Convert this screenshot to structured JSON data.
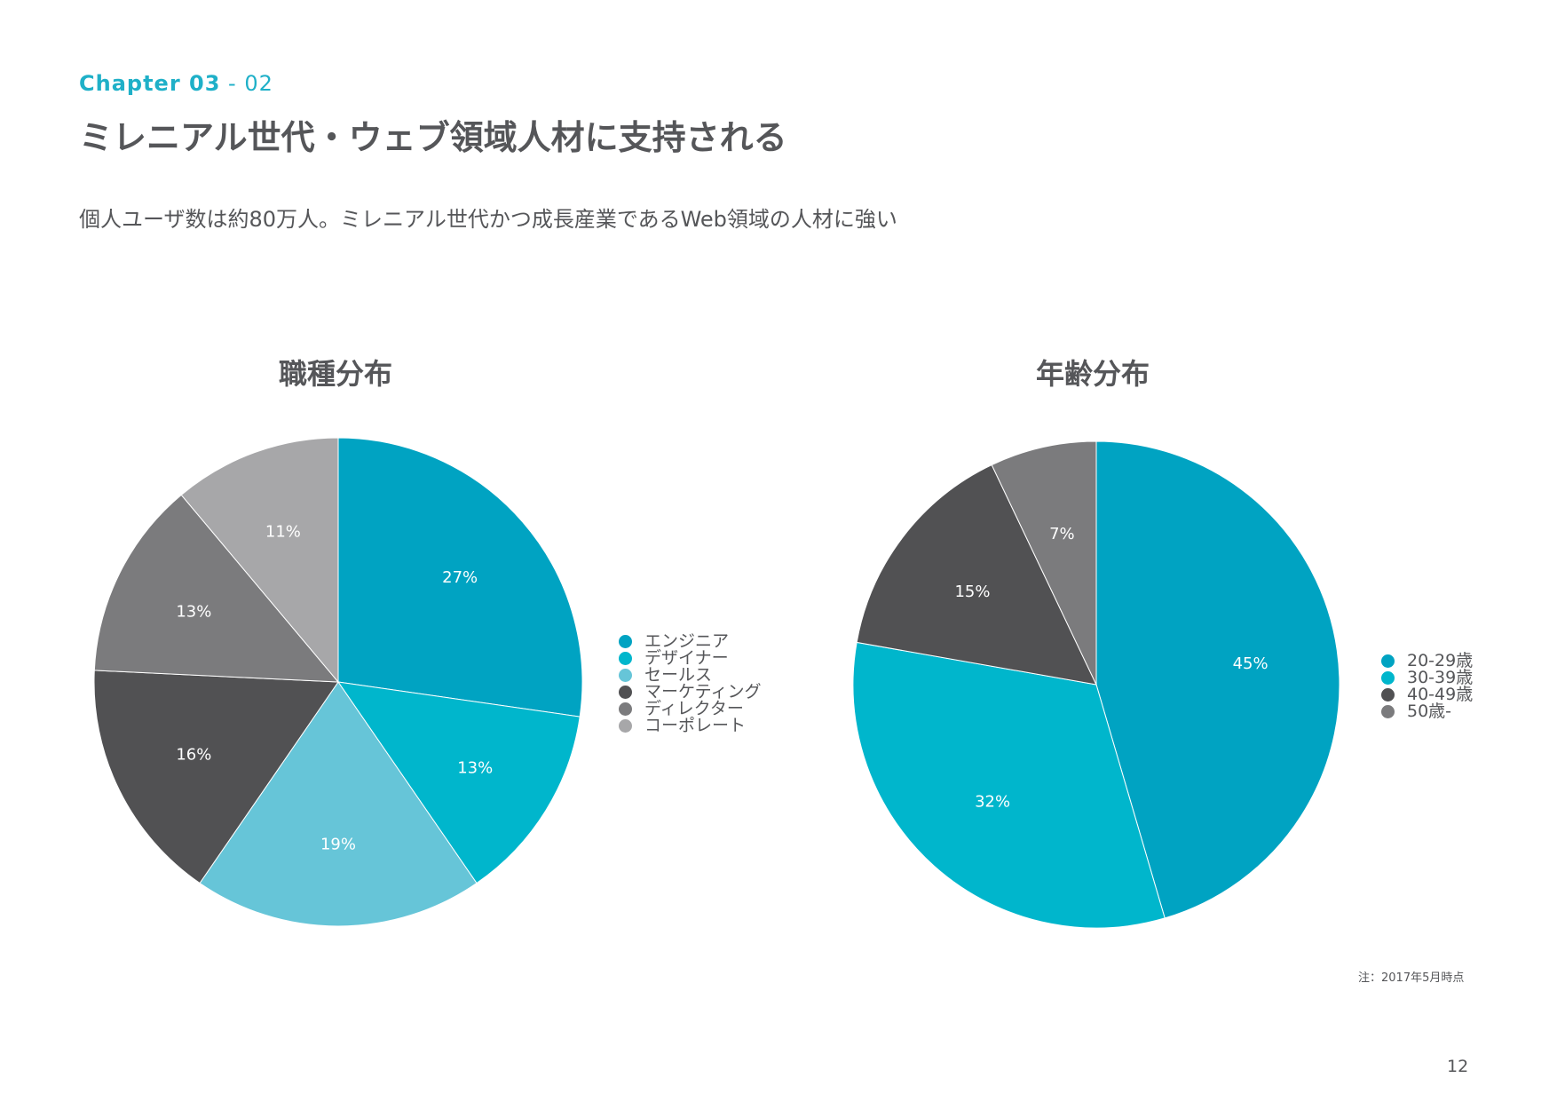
{
  "header": {
    "chapter_label": "Chapter 03",
    "chapter_sep": " - ",
    "chapter_num": "02",
    "title": "ミレニアル世代・ウェブ領域人材に支持される",
    "lead": "個人ユーザ数は約80万人。ミレニアル世代かつ成長産業であるWeb領域の人材に強い"
  },
  "chart_data": [
    {
      "type": "pie",
      "title": "職種分布",
      "labels": [
        "エンジニア",
        "デザイナー",
        "セールス",
        "マーケティング",
        "ディレクター",
        "コーポレート"
      ],
      "values": [
        27,
        13,
        19,
        16,
        13,
        11
      ],
      "value_labels": [
        "27%",
        "13%",
        "19%",
        "16%",
        "13%",
        "11%"
      ],
      "colors": [
        "#00a3c2",
        "#00b6cc",
        "#66c5d8",
        "#515153",
        "#7b7b7d",
        "#a7a7a9"
      ],
      "start": "12 o'clock",
      "direction": "clockwise",
      "legend_position": "right"
    },
    {
      "type": "pie",
      "title": "年齢分布",
      "labels": [
        "20-29歳",
        "30-39歳",
        "40-49歳",
        "50歳-"
      ],
      "values": [
        45,
        32,
        15,
        7
      ],
      "value_labels": [
        "45%",
        "32%",
        "15%",
        "7%"
      ],
      "colors": [
        "#00a3c2",
        "#00b6cc",
        "#515153",
        "#7b7b7d"
      ],
      "start": "12 o'clock",
      "direction": "clockwise",
      "legend_position": "right"
    }
  ],
  "footer": {
    "note": "注：2017年5月時点",
    "page_number": "12"
  }
}
